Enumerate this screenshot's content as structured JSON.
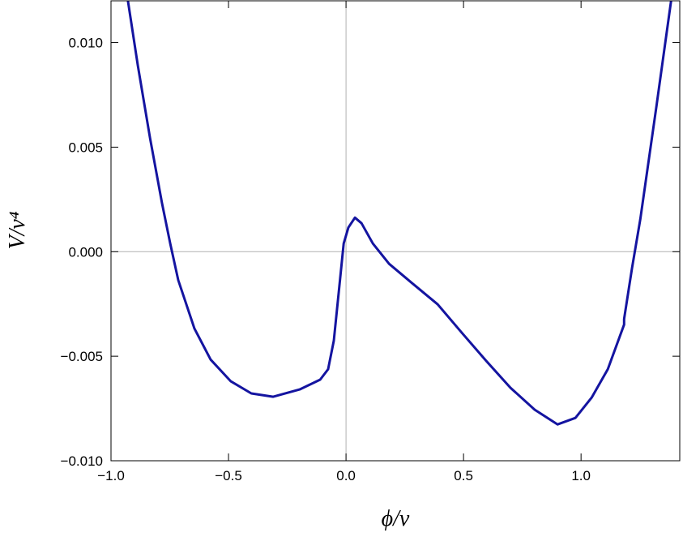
{
  "chart_data": {
    "type": "line",
    "x_label": "ϕ/ν",
    "y_label": "V/ν⁴",
    "x": [
      -0.928,
      -0.886,
      -0.834,
      -0.783,
      -0.748,
      -0.714,
      -0.645,
      -0.576,
      -0.49,
      -0.403,
      -0.31,
      -0.197,
      -0.11,
      -0.076,
      -0.052,
      -0.031,
      -0.01,
      0.01,
      0.038,
      0.066,
      0.114,
      0.183,
      0.286,
      0.39,
      0.493,
      0.597,
      0.7,
      0.803,
      0.9,
      0.976,
      1.045,
      1.114,
      1.183,
      1.183,
      1.217,
      1.252,
      1.321,
      1.383
    ],
    "series": [
      {
        "color": "#1414a0",
        "values": [
          0.012,
          0.00891,
          0.00543,
          0.00233,
          0.00039,
          -0.00136,
          -0.00368,
          -0.00516,
          -0.0062,
          -0.00678,
          -0.00694,
          -0.00659,
          -0.00612,
          -0.00562,
          -0.00426,
          -0.00194,
          0.00039,
          0.00116,
          0.00163,
          0.00136,
          0.00039,
          -0.00058,
          -0.00155,
          -0.00252,
          -0.00388,
          -0.00523,
          -0.00651,
          -0.00756,
          -0.00826,
          -0.00795,
          -0.00698,
          -0.00562,
          -0.00349,
          -0.00322,
          -0.00078,
          0.00155,
          0.00698,
          0.012
        ]
      }
    ],
    "xlim": [
      -1,
      1.42
    ],
    "ylim": [
      -0.01,
      0.012
    ],
    "xticks": [
      {
        "value": -1,
        "label": "−1.0"
      },
      {
        "value": -0.5,
        "label": "−0.5"
      },
      {
        "value": 0,
        "label": "0.0"
      },
      {
        "value": 0.5,
        "label": "0.5"
      },
      {
        "value": 1,
        "label": "1.0"
      }
    ],
    "yticks": [
      {
        "value": -0.01,
        "label": "−0.010"
      },
      {
        "value": -0.005,
        "label": "−0.005"
      },
      {
        "value": 0,
        "label": "0.000"
      },
      {
        "value": 0.005,
        "label": "0.005"
      },
      {
        "value": 0.01,
        "label": "0.010"
      }
    ],
    "zero_axes": true
  }
}
